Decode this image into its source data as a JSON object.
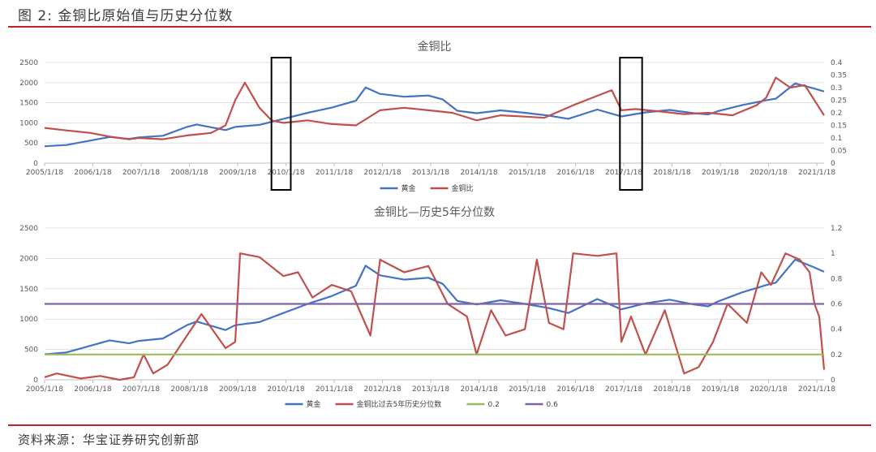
{
  "figure": {
    "title": "图 2:  金铜比原始值与历史分位数",
    "source": "资料来源：华宝证券研究创新部"
  },
  "colors": {
    "gold": "#4472c4",
    "ratio": "#c0504d",
    "line02": "#9bbb59",
    "line06": "#8064a2",
    "rule": "#c0242a"
  },
  "chart_data": [
    {
      "type": "line",
      "title": "金铜比",
      "x_ticks": [
        "2005/1/18",
        "2006/1/18",
        "2007/1/18",
        "2008/1/18",
        "2009/1/18",
        "2010/1/18",
        "2011/1/18",
        "2012/1/18",
        "2013/1/18",
        "2014/1/18",
        "2015/1/18",
        "2016/1/18",
        "2017/1/18",
        "2018/1/18",
        "2019/1/18",
        "2020/1/18",
        "2021/1/18"
      ],
      "xlim": [
        2005.05,
        2021.2
      ],
      "y_left": {
        "lim": [
          0,
          2500
        ],
        "ticks": [
          "0",
          "500",
          "1000",
          "1500",
          "2000",
          "2500"
        ]
      },
      "y_right": {
        "lim": [
          0,
          0.4
        ],
        "ticks": [
          "0",
          "0.05",
          "0.1",
          "0.15",
          "0.2",
          "0.25",
          "0.3",
          "0.35",
          "0.4"
        ]
      },
      "highlight_boxes": [
        [
          2009.75,
          2010.15
        ],
        [
          2016.97,
          2017.43
        ]
      ],
      "series": [
        {
          "name": "黄金",
          "axis": "left",
          "x": [
            2005.05,
            2005.5,
            2006.0,
            2006.4,
            2006.8,
            2007.0,
            2007.5,
            2008.0,
            2008.2,
            2008.8,
            2009.0,
            2009.5,
            2010.0,
            2010.5,
            2011.0,
            2011.5,
            2011.7,
            2012.0,
            2012.5,
            2013.0,
            2013.3,
            2013.6,
            2014.0,
            2014.5,
            2015.0,
            2015.5,
            2015.9,
            2016.5,
            2017.0,
            2017.5,
            2018.0,
            2018.5,
            2018.8,
            2019.0,
            2019.5,
            2020.0,
            2020.2,
            2020.6,
            2021.0,
            2021.2
          ],
          "values": [
            420,
            450,
            560,
            650,
            600,
            640,
            680,
            900,
            960,
            820,
            900,
            950,
            1100,
            1250,
            1380,
            1550,
            1880,
            1720,
            1650,
            1680,
            1580,
            1300,
            1240,
            1310,
            1250,
            1180,
            1100,
            1330,
            1160,
            1260,
            1320,
            1240,
            1210,
            1290,
            1440,
            1560,
            1600,
            1980,
            1850,
            1780
          ]
        },
        {
          "name": "金铜比",
          "axis": "right",
          "x": [
            2005.05,
            2005.5,
            2006.0,
            2006.4,
            2006.8,
            2007.0,
            2007.5,
            2008.0,
            2008.5,
            2008.8,
            2009.0,
            2009.2,
            2009.5,
            2009.75,
            2010.0,
            2010.5,
            2011.0,
            2011.5,
            2012.0,
            2012.5,
            2013.0,
            2013.5,
            2014.0,
            2014.5,
            2015.0,
            2015.4,
            2016.0,
            2016.4,
            2016.8,
            2017.0,
            2017.3,
            2017.8,
            2018.3,
            2018.8,
            2019.3,
            2019.8,
            2020.0,
            2020.2,
            2020.5,
            2020.8,
            2021.0,
            2021.2
          ],
          "values": [
            0.14,
            0.13,
            0.12,
            0.105,
            0.095,
            0.1,
            0.095,
            0.11,
            0.12,
            0.15,
            0.25,
            0.32,
            0.22,
            0.17,
            0.16,
            0.17,
            0.155,
            0.15,
            0.21,
            0.22,
            0.21,
            0.2,
            0.17,
            0.19,
            0.185,
            0.18,
            0.23,
            0.26,
            0.29,
            0.21,
            0.215,
            0.205,
            0.195,
            0.2,
            0.19,
            0.23,
            0.26,
            0.34,
            0.3,
            0.31,
            0.25,
            0.19
          ]
        }
      ]
    },
    {
      "type": "line",
      "title": "金铜比—历史5年分位数",
      "x_ticks": [
        "2005/1/18",
        "2006/1/18",
        "2007/1/18",
        "2008/1/18",
        "2009/1/18",
        "2010/1/18",
        "2011/1/18",
        "2012/1/18",
        "2013/1/18",
        "2014/1/18",
        "2015/1/18",
        "2016/1/18",
        "2017/1/18",
        "2018/1/18",
        "2019/1/18",
        "2020/1/18",
        "2021/1/18"
      ],
      "xlim": [
        2005.05,
        2021.2
      ],
      "y_left": {
        "lim": [
          0,
          2500
        ],
        "ticks": [
          "0",
          "500",
          "1000",
          "1500",
          "2000",
          "2500"
        ]
      },
      "y_right": {
        "lim": [
          0,
          1.2
        ],
        "ticks": [
          "0",
          "0.2",
          "0.4",
          "0.6",
          "0.8",
          "1",
          "1.2"
        ]
      },
      "series": [
        {
          "name": "黄金",
          "axis": "left",
          "x": [
            2005.05,
            2005.5,
            2006.0,
            2006.4,
            2006.8,
            2007.0,
            2007.5,
            2008.0,
            2008.2,
            2008.8,
            2009.0,
            2009.5,
            2010.0,
            2010.5,
            2011.0,
            2011.5,
            2011.7,
            2012.0,
            2012.5,
            2013.0,
            2013.3,
            2013.6,
            2014.0,
            2014.5,
            2015.0,
            2015.5,
            2015.9,
            2016.5,
            2017.0,
            2017.5,
            2018.0,
            2018.5,
            2018.8,
            2019.0,
            2019.5,
            2020.0,
            2020.2,
            2020.6,
            2021.0,
            2021.2
          ],
          "values": [
            420,
            450,
            560,
            650,
            600,
            640,
            680,
            900,
            960,
            820,
            900,
            950,
            1100,
            1250,
            1380,
            1550,
            1880,
            1720,
            1650,
            1680,
            1580,
            1300,
            1240,
            1310,
            1250,
            1180,
            1100,
            1330,
            1160,
            1260,
            1320,
            1240,
            1210,
            1290,
            1440,
            1560,
            1600,
            1980,
            1850,
            1780
          ]
        },
        {
          "name": "金铜比过去5年历史分位数",
          "axis": "right",
          "x": [
            2005.05,
            2005.3,
            2005.8,
            2006.2,
            2006.6,
            2006.9,
            2007.1,
            2007.3,
            2007.6,
            2008.0,
            2008.3,
            2008.8,
            2009.0,
            2009.1,
            2009.5,
            2010.0,
            2010.3,
            2010.6,
            2011.0,
            2011.4,
            2011.8,
            2012.0,
            2012.5,
            2013.0,
            2013.4,
            2013.8,
            2014.0,
            2014.3,
            2014.6,
            2015.0,
            2015.25,
            2015.5,
            2015.8,
            2016.0,
            2016.5,
            2016.9,
            2017.0,
            2017.2,
            2017.5,
            2017.9,
            2018.3,
            2018.6,
            2018.9,
            2019.2,
            2019.6,
            2019.9,
            2020.1,
            2020.4,
            2020.7,
            2020.9,
            2021.0,
            2021.1,
            2021.2
          ],
          "values": [
            0.02,
            0.05,
            0.01,
            0.03,
            0.0,
            0.02,
            0.2,
            0.05,
            0.12,
            0.35,
            0.52,
            0.25,
            0.3,
            1.0,
            0.97,
            0.82,
            0.85,
            0.65,
            0.75,
            0.7,
            0.35,
            0.95,
            0.85,
            0.9,
            0.6,
            0.5,
            0.2,
            0.55,
            0.35,
            0.4,
            0.95,
            0.45,
            0.4,
            1.0,
            0.98,
            1.0,
            0.3,
            0.5,
            0.2,
            0.55,
            0.05,
            0.1,
            0.3,
            0.6,
            0.45,
            0.85,
            0.75,
            1.0,
            0.95,
            0.85,
            0.6,
            0.5,
            0.08
          ]
        },
        {
          "name": "0.2",
          "axis": "right",
          "x": [
            2005.05,
            2021.2
          ],
          "values": [
            0.2,
            0.2
          ]
        },
        {
          "name": "0.6",
          "axis": "right",
          "x": [
            2005.05,
            2021.2
          ],
          "values": [
            0.6,
            0.6
          ]
        }
      ]
    }
  ]
}
